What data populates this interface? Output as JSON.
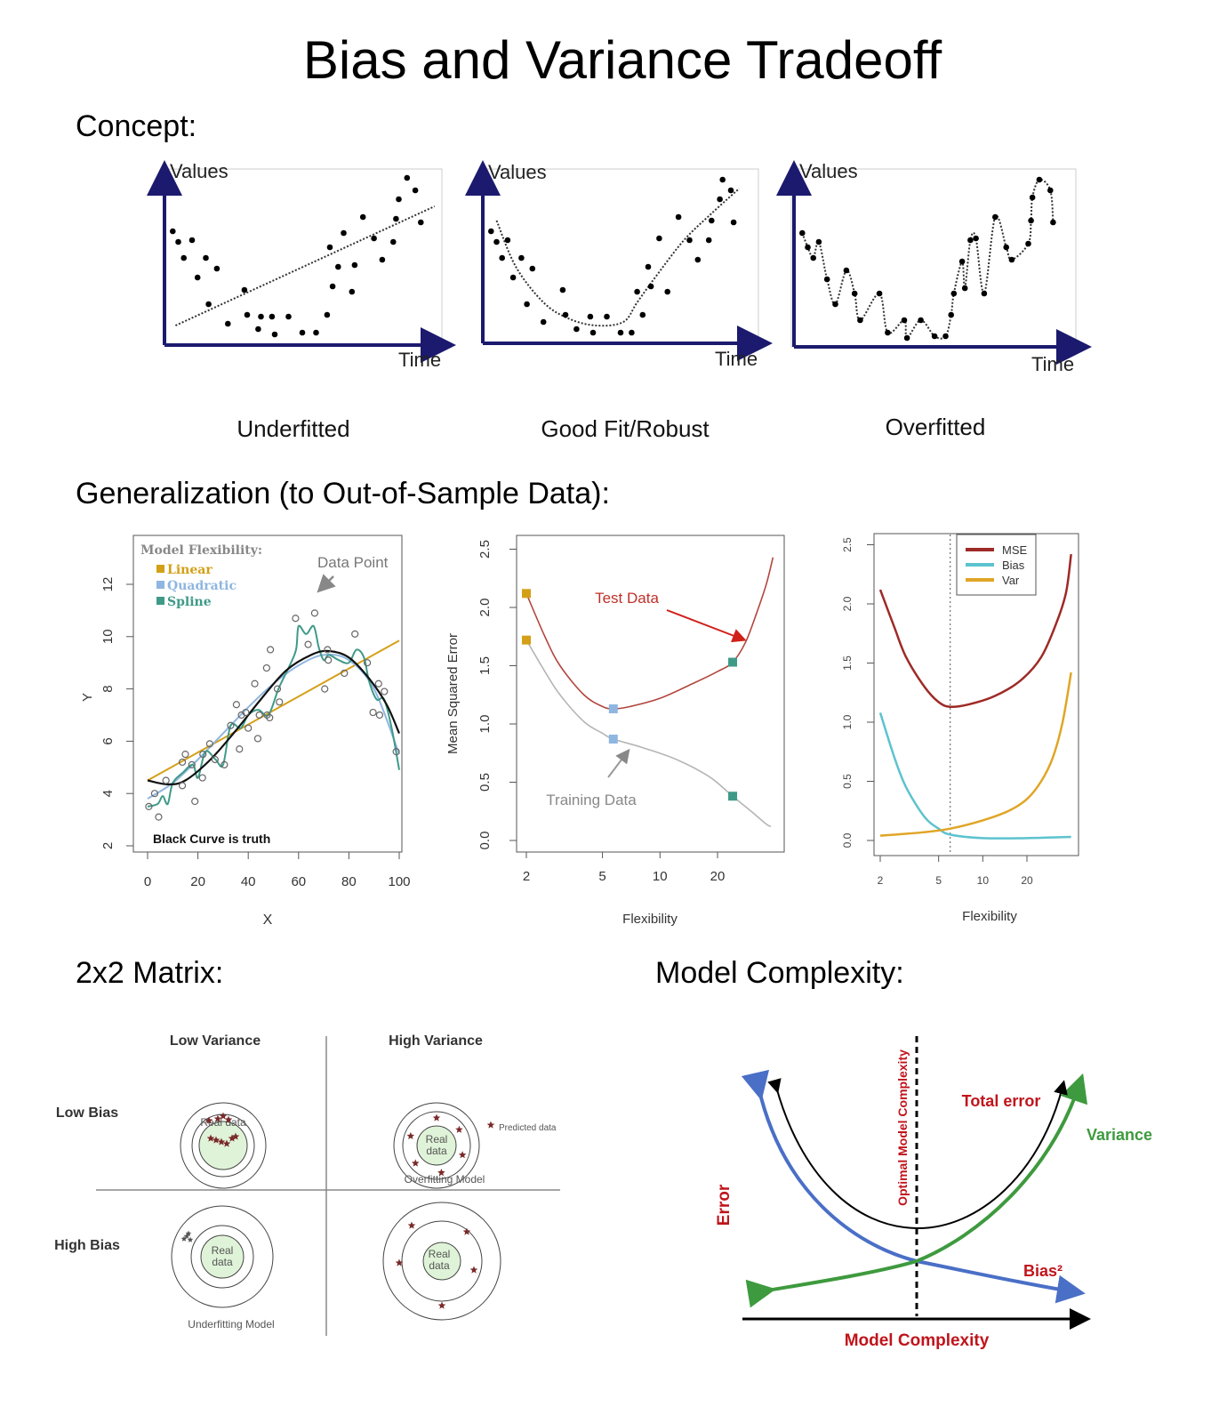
{
  "title": "Bias and Variance Tradeoff",
  "sections": {
    "concept": "Concept:",
    "generalization": "Generalization (to Out-of-Sample Data):",
    "matrix": "2x2 Matrix:",
    "complexity": "Model Complexity:"
  },
  "colors": {
    "axis_navy": "#1b1a6e",
    "linear": "#d4a017",
    "quadratic": "#8fb6e0",
    "spline": "#3f9a88",
    "mse": "#9e2a26",
    "bias": "#5cc3cf",
    "var": "#e0a526",
    "test": "#b2463d",
    "train": "#b5b5b5",
    "blue": "#4a6fc7",
    "green": "#3e9a3e",
    "red": "#c0141b"
  },
  "concept_plots": [
    {
      "caption": "Underfitted",
      "ylabel": "Values",
      "xlabel": "Time",
      "points": [
        [
          0.3,
          6.4
        ],
        [
          0.5,
          5.8
        ],
        [
          0.7,
          4.9
        ],
        [
          1.0,
          5.9
        ],
        [
          1.2,
          3.8
        ],
        [
          1.5,
          4.9
        ],
        [
          1.6,
          2.3
        ],
        [
          1.9,
          4.3
        ],
        [
          2.3,
          1.2
        ],
        [
          2.9,
          3.1
        ],
        [
          3.0,
          1.7
        ],
        [
          3.4,
          0.9
        ],
        [
          3.5,
          1.6
        ],
        [
          4.0,
          0.6
        ],
        [
          3.9,
          1.6
        ],
        [
          4.5,
          1.6
        ],
        [
          5.0,
          0.7
        ],
        [
          5.5,
          0.7
        ],
        [
          5.9,
          1.7
        ],
        [
          6.0,
          5.5
        ],
        [
          6.1,
          3.3
        ],
        [
          6.3,
          4.4
        ],
        [
          6.5,
          6.3
        ],
        [
          6.9,
          4.5
        ],
        [
          6.8,
          3.0
        ],
        [
          7.2,
          7.2
        ],
        [
          7.6,
          6.0
        ],
        [
          7.9,
          4.8
        ],
        [
          8.3,
          5.8
        ],
        [
          8.4,
          7.1
        ],
        [
          8.5,
          8.2
        ],
        [
          8.8,
          9.4
        ],
        [
          9.1,
          8.7
        ],
        [
          9.3,
          6.9
        ]
      ],
      "fit": [
        [
          0.4,
          1.1
        ],
        [
          9.8,
          7.8
        ]
      ]
    },
    {
      "caption": "Good Fit/Robust",
      "ylabel": "Values",
      "xlabel": "Time",
      "points": [
        [
          0.3,
          6.3
        ],
        [
          0.5,
          5.7
        ],
        [
          0.7,
          4.8
        ],
        [
          0.9,
          5.8
        ],
        [
          1.1,
          3.7
        ],
        [
          1.4,
          4.8
        ],
        [
          1.6,
          2.2
        ],
        [
          1.8,
          4.2
        ],
        [
          2.2,
          1.2
        ],
        [
          2.9,
          3.0
        ],
        [
          3.0,
          1.6
        ],
        [
          3.4,
          0.8
        ],
        [
          3.9,
          1.5
        ],
        [
          4.0,
          0.6
        ],
        [
          4.5,
          1.5
        ],
        [
          5.0,
          0.6
        ],
        [
          5.4,
          0.6
        ],
        [
          5.8,
          1.6
        ],
        [
          5.6,
          2.9
        ],
        [
          6.0,
          4.3
        ],
        [
          6.1,
          3.2
        ],
        [
          6.4,
          5.9
        ],
        [
          6.7,
          2.9
        ],
        [
          7.1,
          7.1
        ],
        [
          7.5,
          5.8
        ],
        [
          7.8,
          4.7
        ],
        [
          8.2,
          5.8
        ],
        [
          8.3,
          6.9
        ],
        [
          8.6,
          8.1
        ],
        [
          8.7,
          9.2
        ],
        [
          9.0,
          8.6
        ],
        [
          9.1,
          6.8
        ]
      ],
      "fit": [
        [
          0.5,
          6.9
        ],
        [
          1.2,
          4.3
        ],
        [
          2.2,
          2.3
        ],
        [
          3.1,
          1.4
        ],
        [
          4.1,
          1.0
        ],
        [
          5.1,
          1.2
        ],
        [
          5.6,
          2.3
        ],
        [
          6.3,
          3.8
        ],
        [
          7.3,
          5.8
        ],
        [
          8.3,
          7.3
        ],
        [
          9.3,
          8.7
        ]
      ]
    },
    {
      "caption": "Overfitted",
      "ylabel": "Values",
      "xlabel": "Time",
      "points": [
        [
          0.3,
          6.4
        ],
        [
          0.5,
          5.6
        ],
        [
          0.7,
          5.0
        ],
        [
          0.9,
          5.9
        ],
        [
          1.2,
          3.8
        ],
        [
          1.5,
          2.4
        ],
        [
          1.9,
          4.3
        ],
        [
          2.2,
          3.0
        ],
        [
          2.4,
          1.5
        ],
        [
          3.1,
          3.0
        ],
        [
          3.4,
          0.8
        ],
        [
          4.0,
          1.5
        ],
        [
          4.1,
          0.5
        ],
        [
          4.6,
          1.5
        ],
        [
          5.1,
          0.6
        ],
        [
          5.5,
          0.6
        ],
        [
          5.7,
          1.8
        ],
        [
          5.8,
          3.0
        ],
        [
          6.1,
          4.8
        ],
        [
          6.2,
          3.3
        ],
        [
          6.4,
          6.0
        ],
        [
          6.6,
          6.1
        ],
        [
          6.9,
          3.0
        ],
        [
          7.3,
          7.3
        ],
        [
          7.7,
          5.6
        ],
        [
          7.9,
          4.9
        ],
        [
          8.5,
          5.8
        ],
        [
          8.6,
          7.1
        ],
        [
          8.65,
          8.4
        ],
        [
          8.9,
          9.4
        ],
        [
          9.3,
          8.8
        ],
        [
          9.4,
          7.0
        ]
      ],
      "fit": "through_points"
    }
  ],
  "flex_plot": {
    "legend_title": "Model Flexibility:",
    "legend": [
      "Linear",
      "Quadratic",
      "Spline"
    ],
    "annotation": "Data Point",
    "note": "Black Curve is truth",
    "xlabel": "X",
    "ylabel": "Y",
    "xticks": [
      0,
      20,
      40,
      60,
      80,
      100
    ],
    "yticks": [
      2,
      4,
      6,
      8,
      10,
      12
    ],
    "points": [
      [
        0.5,
        3.5
      ],
      [
        2.8,
        4.0
      ],
      [
        4.4,
        3.1
      ],
      [
        7.3,
        4.5
      ],
      [
        13.8,
        4.3
      ],
      [
        13.8,
        5.2
      ],
      [
        15,
        5.5
      ],
      [
        17.6,
        5.1
      ],
      [
        18.8,
        3.7
      ],
      [
        21.8,
        4.6
      ],
      [
        22,
        5.5
      ],
      [
        24.7,
        5.9
      ],
      [
        26.8,
        5.3
      ],
      [
        30.5,
        5.1
      ],
      [
        33,
        6.6
      ],
      [
        35.3,
        7.4
      ],
      [
        36.5,
        5.7
      ],
      [
        37.3,
        7.0
      ],
      [
        39,
        7.1
      ],
      [
        40,
        6.5
      ],
      [
        42.6,
        8.2
      ],
      [
        43.8,
        6.1
      ],
      [
        44.4,
        7.0
      ],
      [
        47.3,
        8.8
      ],
      [
        47.5,
        7.0
      ],
      [
        48.5,
        6.9
      ],
      [
        48.8,
        9.5
      ],
      [
        51.6,
        8.0
      ],
      [
        52.4,
        7.5
      ],
      [
        58.8,
        10.7
      ],
      [
        63.8,
        9.7
      ],
      [
        66.4,
        10.9
      ],
      [
        70.4,
        8.0
      ],
      [
        71.5,
        9.5
      ],
      [
        71.8,
        9.1
      ],
      [
        78.2,
        8.6
      ],
      [
        82.4,
        10.1
      ],
      [
        87.3,
        9.0
      ],
      [
        89.6,
        7.1
      ],
      [
        92.2,
        7.0
      ],
      [
        91.8,
        8.2
      ],
      [
        94.1,
        7.9
      ],
      [
        98.8,
        5.6
      ]
    ],
    "truth": [
      [
        0,
        4.5
      ],
      [
        8,
        4.35
      ],
      [
        15,
        4.5
      ],
      [
        25,
        5.3
      ],
      [
        35,
        6.4
      ],
      [
        45,
        7.6
      ],
      [
        55,
        8.7
      ],
      [
        65,
        9.3
      ],
      [
        72,
        9.45
      ],
      [
        80,
        9.2
      ],
      [
        88,
        8.4
      ],
      [
        95,
        7.4
      ],
      [
        100,
        6.3
      ]
    ],
    "linear": [
      [
        0,
        4.5
      ],
      [
        100,
        9.85
      ]
    ],
    "quadratic": [
      [
        0,
        3.8
      ],
      [
        10,
        4.4
      ],
      [
        20,
        5.3
      ],
      [
        30,
        6.3
      ],
      [
        40,
        7.3
      ],
      [
        50,
        8.2
      ],
      [
        60,
        8.9
      ],
      [
        70,
        9.3
      ],
      [
        80,
        9.1
      ],
      [
        90,
        8.0
      ],
      [
        100,
        5.5
      ]
    ],
    "spline": [
      [
        0,
        3.5
      ],
      [
        4,
        3.6
      ],
      [
        6,
        3.9
      ],
      [
        8,
        3.6
      ],
      [
        10,
        4.4
      ],
      [
        14,
        4.8
      ],
      [
        18,
        5.1
      ],
      [
        20,
        4.6
      ],
      [
        23,
        5.6
      ],
      [
        27,
        5.3
      ],
      [
        30,
        5.1
      ],
      [
        33,
        6.6
      ],
      [
        37,
        6.5
      ],
      [
        40,
        7.0
      ],
      [
        44,
        7.2
      ],
      [
        48,
        7.0
      ],
      [
        52,
        8.0
      ],
      [
        56,
        8.8
      ],
      [
        59,
        9.5
      ],
      [
        60,
        10.4
      ],
      [
        63,
        10.1
      ],
      [
        66,
        10.4
      ],
      [
        68,
        9.6
      ],
      [
        70,
        9.1
      ],
      [
        72,
        9.3
      ],
      [
        76,
        9.1
      ],
      [
        80,
        9.0
      ],
      [
        83,
        9.5
      ],
      [
        86,
        9.2
      ],
      [
        88,
        8.3
      ],
      [
        91,
        7.6
      ],
      [
        94,
        7.6
      ],
      [
        97,
        6.5
      ],
      [
        100,
        4.9
      ]
    ]
  },
  "mse_plot": {
    "xlabel": "Flexibility",
    "ylabel": "Mean Squared Error",
    "xticks": [
      2,
      5,
      10,
      20
    ],
    "yticks": [
      "0.0",
      "0.5",
      "1.0",
      "1.5",
      "2.0",
      "2.5"
    ],
    "test_label": "Test Data",
    "train_label": "Training Data",
    "test": [
      [
        2,
        2.12
      ],
      [
        2.5,
        1.75
      ],
      [
        3,
        1.5
      ],
      [
        4,
        1.25
      ],
      [
        5,
        1.15
      ],
      [
        5.7,
        1.13
      ],
      [
        7,
        1.15
      ],
      [
        10,
        1.22
      ],
      [
        15,
        1.35
      ],
      [
        20,
        1.45
      ],
      [
        24,
        1.53
      ],
      [
        28,
        1.7
      ],
      [
        32,
        1.95
      ],
      [
        36,
        2.2
      ],
      [
        39,
        2.43
      ]
    ],
    "train": [
      [
        2,
        1.72
      ],
      [
        2.5,
        1.45
      ],
      [
        3,
        1.25
      ],
      [
        4,
        1.02
      ],
      [
        5,
        0.92
      ],
      [
        5.7,
        0.87
      ],
      [
        8,
        0.8
      ],
      [
        12,
        0.7
      ],
      [
        18,
        0.55
      ],
      [
        24,
        0.38
      ],
      [
        30,
        0.25
      ],
      [
        36,
        0.14
      ],
      [
        38,
        0.12
      ]
    ],
    "markers": [
      [
        2,
        2.12,
        "linear"
      ],
      [
        2,
        1.72,
        "linear"
      ],
      [
        5.7,
        1.13,
        "quadratic"
      ],
      [
        5.7,
        0.87,
        "quadratic"
      ],
      [
        24,
        1.53,
        "spline"
      ],
      [
        24,
        0.38,
        "spline"
      ]
    ]
  },
  "decomp_plot": {
    "xlabel": "Flexibility",
    "xticks": [
      2,
      5,
      10,
      20
    ],
    "yticks": [
      "0.0",
      "0.5",
      "1.0",
      "1.5",
      "2.0",
      "2.5"
    ],
    "legend": [
      "MSE",
      "Bias",
      "Var"
    ],
    "optimal_flex": 6,
    "mse": [
      [
        2,
        2.12
      ],
      [
        2.5,
        1.8
      ],
      [
        3,
        1.55
      ],
      [
        4,
        1.3
      ],
      [
        5,
        1.17
      ],
      [
        6,
        1.13
      ],
      [
        8,
        1.15
      ],
      [
        12,
        1.22
      ],
      [
        18,
        1.35
      ],
      [
        25,
        1.55
      ],
      [
        32,
        1.85
      ],
      [
        37,
        2.1
      ],
      [
        40,
        2.42
      ]
    ],
    "bias": [
      [
        2,
        1.08
      ],
      [
        2.5,
        0.7
      ],
      [
        3,
        0.45
      ],
      [
        4,
        0.2
      ],
      [
        5,
        0.1
      ],
      [
        6,
        0.05
      ],
      [
        10,
        0.02
      ],
      [
        20,
        0.02
      ],
      [
        40,
        0.03
      ]
    ],
    "var": [
      [
        2,
        0.04
      ],
      [
        4,
        0.07
      ],
      [
        6,
        0.1
      ],
      [
        10,
        0.17
      ],
      [
        15,
        0.25
      ],
      [
        20,
        0.35
      ],
      [
        25,
        0.5
      ],
      [
        30,
        0.7
      ],
      [
        35,
        1.0
      ],
      [
        40,
        1.42
      ]
    ]
  },
  "matrix": {
    "col_low": "Low Variance",
    "col_high": "High Variance",
    "row_low": "Low Bias",
    "row_high": "High Bias",
    "real_data": "Real data",
    "real": "Real",
    "data": "data",
    "predicted": "Predicted data",
    "overfitting": "Overfitting Model",
    "underfitting": "Underfitting Model"
  },
  "complexity": {
    "y_label": "Error",
    "x_label": "Model Complexity",
    "optimal": "Optimal Model Complexity",
    "total": "Total error",
    "variance": "Variance",
    "bias": "Bias²"
  }
}
